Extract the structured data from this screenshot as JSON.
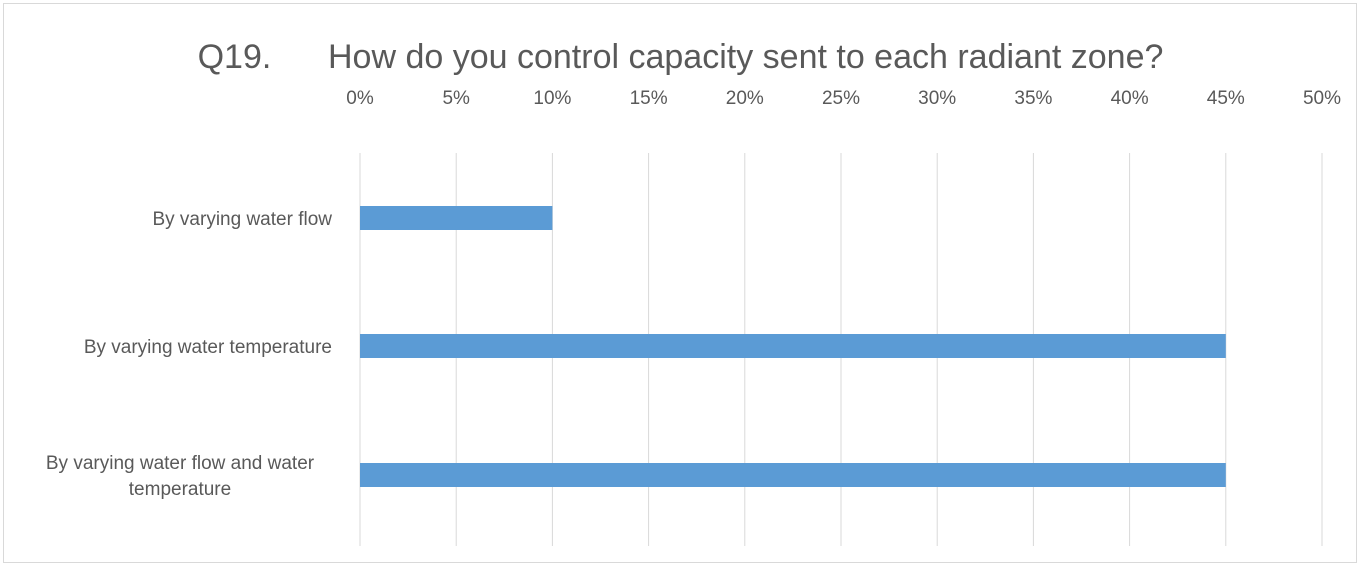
{
  "chart_data": {
    "type": "bar",
    "orientation": "horizontal",
    "title": "Q19.      How do you control capacity sent to each radiant zone?",
    "xlabel": "",
    "ylabel": "",
    "categories": [
      "By varying water flow",
      "By varying water temperature",
      "By varying water flow and water temperature"
    ],
    "category_lines": [
      [
        "By varying water flow"
      ],
      [
        "By varying water temperature"
      ],
      [
        "By varying water flow and water",
        "temperature"
      ]
    ],
    "values": [
      10,
      45,
      45
    ],
    "xlim": [
      0,
      50
    ],
    "ticks": [
      0,
      5,
      10,
      15,
      20,
      25,
      30,
      35,
      40,
      45,
      50
    ],
    "tick_labels": [
      "0%",
      "5%",
      "10%",
      "15%",
      "20%",
      "25%",
      "30%",
      "35%",
      "40%",
      "45%",
      "50%"
    ],
    "axis_position": "top",
    "grid": true,
    "legend": false,
    "bar_color": "#5b9bd5",
    "grid_color": "#d9d9d9"
  }
}
